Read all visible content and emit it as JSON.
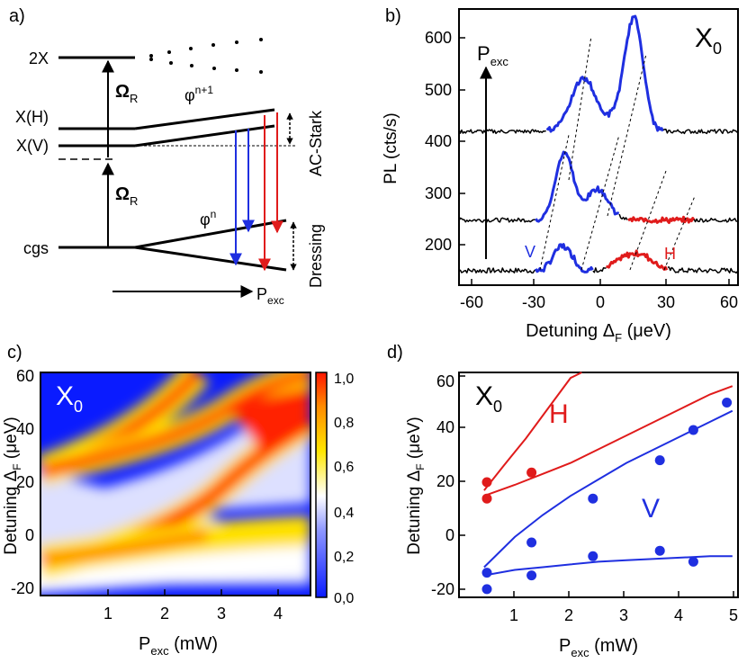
{
  "panel_a": {
    "label": "a)",
    "levels": [
      "2X",
      "X(H)",
      "X(V)",
      "cgs"
    ],
    "omega_top": "Ω",
    "omega_top_sub": "R",
    "omega_bot": "Ω",
    "omega_bot_sub": "R",
    "phi_upper": "φ",
    "phi_upper_sup": "n+1",
    "phi_lower": "φ",
    "phi_lower_sup": "n",
    "ac_stark": "AC-Stark",
    "dressing": "Dressing",
    "pexc": "P",
    "pexc_sub": "exc"
  },
  "panel_b": {
    "label": "b)",
    "tag": "X",
    "tag_sub": "0",
    "pexc": "P",
    "pexc_sub": "exc",
    "ylabel": "PL (cts/s)",
    "xlabel": "Detuning Δ",
    "xlabel_sub": "F",
    "xlabel_unit": " (μeV)",
    "v_label": "V",
    "h_label": "H",
    "xticks": [
      "-60",
      "-30",
      "0",
      "30",
      "60"
    ],
    "yticks": [
      "200",
      "300",
      "400",
      "500",
      "600"
    ]
  },
  "panel_c": {
    "label": "c)",
    "tag": "X",
    "tag_sub": "0",
    "ylabel": "Detuning Δ",
    "ylabel_sub": "F",
    "ylabel_unit": " (μeV)",
    "xlabel": "P",
    "xlabel_sub": "exc",
    "xlabel_unit": " (mW)",
    "xticks": [
      "1",
      "2",
      "3",
      "4"
    ],
    "yticks": [
      "-20",
      "0",
      "20",
      "40",
      "60"
    ],
    "colorbar_ticks": [
      "0,0",
      "0,2",
      "0,4",
      "0,6",
      "0,8",
      "1,0"
    ]
  },
  "panel_d": {
    "label": "d)",
    "tag": "X",
    "tag_sub": "0",
    "h_label": "H",
    "v_label": "V",
    "ylabel": "Detuning Δ",
    "ylabel_sub": "F",
    "ylabel_unit": " (μeV)",
    "xlabel": "P",
    "xlabel_sub": "exc",
    "xlabel_unit": " (mW)",
    "xticks": [
      "1",
      "2",
      "3",
      "4",
      "5"
    ],
    "yticks": [
      "-20",
      "0",
      "20",
      "40",
      "60"
    ]
  },
  "colors": {
    "blue": "#1f2fe0",
    "red": "#e01b1b",
    "black": "#000000"
  },
  "chart_data": [
    {
      "type": "line",
      "panel": "b",
      "xlim": [
        -65,
        62
      ],
      "ylim": [
        120,
        650
      ],
      "series_offsets": [
        0,
        100,
        270
      ]
    },
    {
      "type": "heatmap",
      "panel": "c",
      "xlim": [
        0.3,
        4.55
      ],
      "ylim": [
        -25,
        60
      ],
      "colorscale": [
        "#0a1bff",
        "#ffffff",
        "#ffe600",
        "#ff2200"
      ],
      "zlim": [
        0,
        1
      ]
    },
    {
      "type": "scatter",
      "panel": "d",
      "xlim": [
        0,
        5
      ],
      "ylim": [
        -20,
        62
      ],
      "series": [
        {
          "name": "H",
          "color": "#e01b1b",
          "x": [
            0.5,
            0.5,
            1.3
          ],
          "y": [
            16,
            22,
            25.5
          ]
        },
        {
          "name": "V",
          "color": "#1f2fe0",
          "x": [
            0.5,
            0.5,
            1.3,
            1.3,
            2.4,
            2.4,
            3.6,
            3.6,
            4.2,
            4.2,
            4.8
          ],
          "y": [
            -17,
            -11,
            -12,
            0,
            -5,
            16,
            -3,
            30,
            -7,
            41,
            51
          ]
        }
      ],
      "fits": [
        {
          "name": "H-upper",
          "color": "#e01b1b",
          "x": [
            0.45,
            0.8,
            1.2,
            1.6,
            2.0,
            2.2
          ],
          "y": [
            19,
            28,
            38,
            49,
            60,
            66
          ]
        },
        {
          "name": "H-lower",
          "color": "#e01b1b",
          "x": [
            0.45,
            1.0,
            1.5,
            2.0,
            2.5,
            3.0,
            3.5,
            4.0,
            4.5,
            4.9
          ],
          "y": [
            17,
            21,
            25,
            29,
            34,
            39,
            44,
            49,
            54,
            57
          ]
        },
        {
          "name": "V-upper",
          "color": "#1f2fe0",
          "x": [
            0.45,
            1.0,
            1.5,
            2.0,
            2.5,
            3.0,
            3.5,
            4.0,
            4.5,
            4.9
          ],
          "y": [
            -9,
            2,
            10,
            17,
            23,
            29,
            34,
            39,
            44,
            48
          ]
        },
        {
          "name": "V-lower",
          "color": "#1f2fe0",
          "x": [
            0.45,
            1.0,
            1.5,
            2.0,
            2.5,
            3.0,
            3.5,
            4.0,
            4.5,
            4.9
          ],
          "y": [
            -12,
            -10,
            -9,
            -8,
            -7,
            -6.5,
            -6,
            -5.5,
            -5,
            -5
          ]
        }
      ]
    }
  ]
}
